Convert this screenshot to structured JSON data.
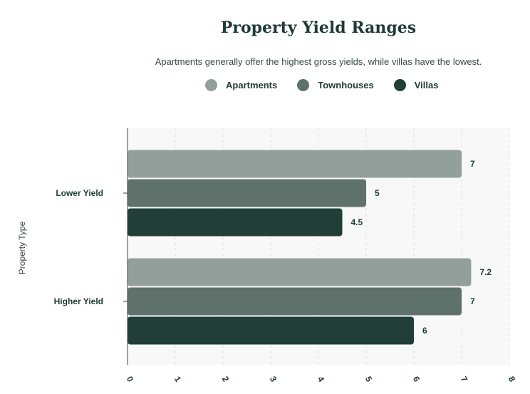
{
  "chart_data": {
    "type": "bar",
    "orientation": "horizontal",
    "title": "Property Yield Ranges",
    "subtitle": "Apartments generally offer the highest gross yields, while villas have the lowest.",
    "xlabel": "",
    "ylabel": "Property Type",
    "categories": [
      "Lower Yield",
      "Higher Yield"
    ],
    "series": [
      {
        "name": "Apartments",
        "values": [
          7,
          7.2
        ],
        "color": "#939f9a"
      },
      {
        "name": "Townhouses",
        "values": [
          5,
          7
        ],
        "color": "#5f716b"
      },
      {
        "name": "Villas",
        "values": [
          4.5,
          6
        ],
        "color": "#213e38"
      }
    ],
    "xlim": [
      0,
      8
    ],
    "xticks": [
      "0",
      "1",
      "2",
      "3",
      "4",
      "5",
      "6",
      "7",
      "8"
    ],
    "grid": true,
    "legend_position": "top"
  }
}
